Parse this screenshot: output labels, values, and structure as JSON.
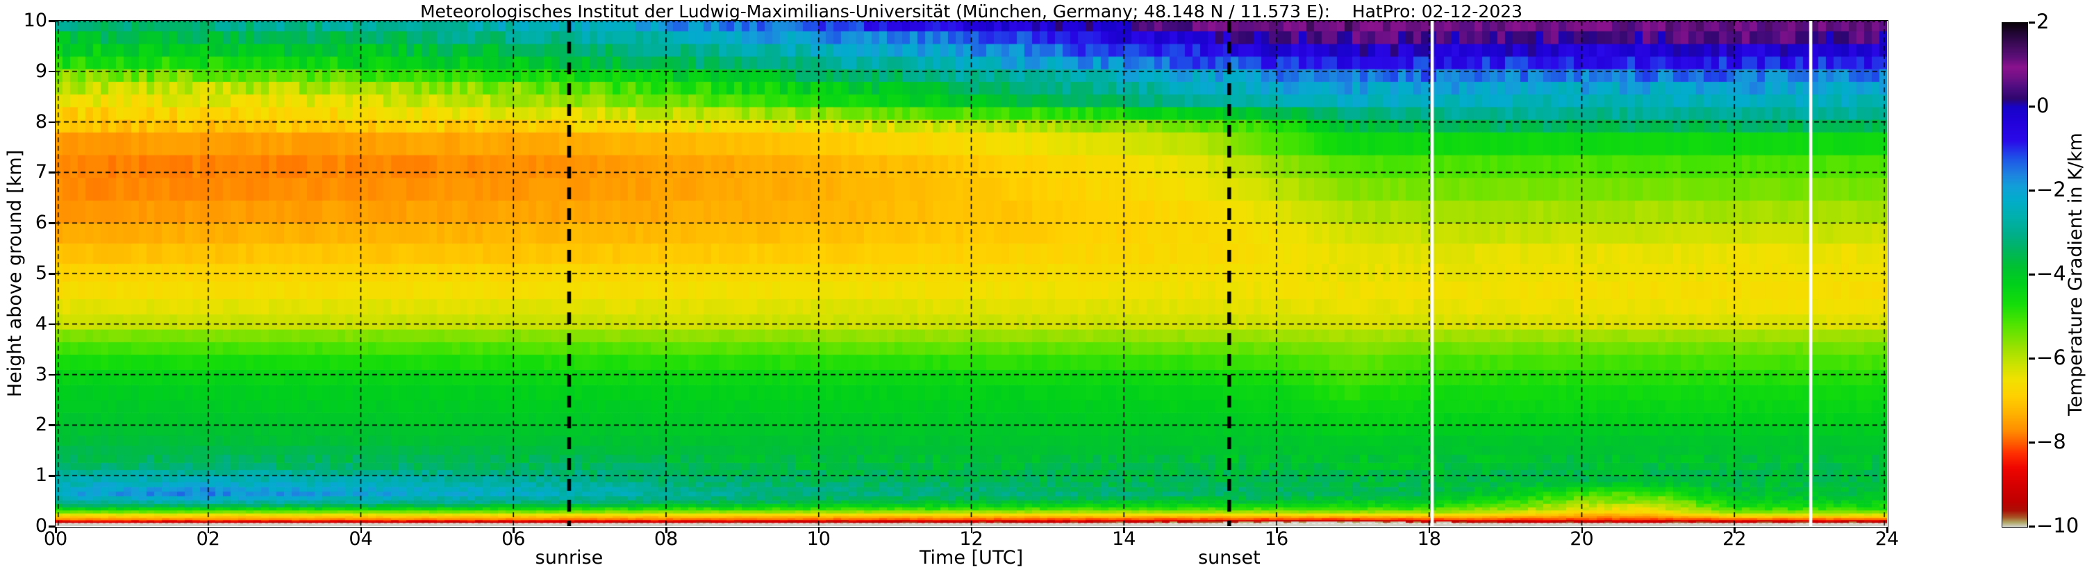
{
  "title": "Meteorologisches Institut der Ludwig-Maximilians-Universität (München, Germany; 48.148 N / 11.573 E):    HatPro: 02-12-2023",
  "x_axis_title": "Time [UTC]",
  "y_axis_title": "Height above ground [km]",
  "colorbar_title": "Temperature Gradient in K/km",
  "chart_data": {
    "type": "heatmap",
    "title": "Meteorologisches Institut der Ludwig-Maximilians-Universität (München, Germany; 48.148 N / 11.573 E):    HatPro: 02-12-2023",
    "xlabel": "Time [UTC]",
    "ylabel": "Height above ground [km]",
    "colorbar_label": "Temperature Gradient in K/km",
    "xlim": [
      0,
      24
    ],
    "ylim": [
      0,
      10
    ],
    "clim": [
      -10,
      2
    ],
    "grid": "dashed black, x every 2 h, y every 1 km",
    "xtick_labels": [
      "00",
      "02",
      "04",
      "06",
      "08",
      "10",
      "12",
      "14",
      "16",
      "18",
      "20",
      "22",
      "24"
    ],
    "xtick_hours": [
      0,
      2,
      4,
      6,
      8,
      10,
      12,
      14,
      16,
      18,
      20,
      22,
      24
    ],
    "ytick_labels": [
      "0",
      "1",
      "2",
      "3",
      "4",
      "5",
      "6",
      "7",
      "8",
      "9",
      "10"
    ],
    "ytick_km": [
      0,
      1,
      2,
      3,
      4,
      5,
      6,
      7,
      8,
      9,
      10
    ],
    "colorbar_tick_labels": [
      "2",
      "0",
      "−2",
      "−4",
      "−6",
      "−8",
      "−10"
    ],
    "colorbar_tick_values": [
      2,
      0,
      -2,
      -4,
      -6,
      -8,
      -10
    ],
    "annotations": [
      {
        "label": "sunrise",
        "hour_utc": 6.73,
        "style": "thick dashed black vertical line"
      },
      {
        "label": "sunset",
        "hour_utc": 15.38,
        "style": "thick dashed black vertical line"
      }
    ],
    "data_gap_hours_utc": [
      18.04,
      23.0
    ],
    "x_hours": [
      0,
      1,
      2,
      3,
      4,
      5,
      6,
      7,
      8,
      9,
      10,
      11,
      12,
      13,
      14,
      15,
      16,
      17,
      18,
      19,
      20,
      21,
      22,
      23,
      24
    ],
    "heights_km": [
      0.05,
      0.1,
      0.15,
      0.22,
      0.3,
      0.45,
      0.65,
      0.9,
      1.2,
      1.7,
      2.3,
      2.9,
      3.4,
      3.7,
      4.0,
      4.6,
      5.3,
      6.0,
      6.8,
      7.5,
      8.0,
      8.4,
      8.8,
      9.1,
      9.4,
      9.7,
      10.0
    ],
    "values_K_per_km": [
      [
        -10.3,
        -10.3,
        -10.3,
        -10.3,
        -10.3,
        -10.3,
        -10.3,
        -10.3,
        -10.3,
        -10.3,
        -10.3,
        -10.3,
        -10.3,
        -10.35,
        -10.35,
        -10.4,
        -10.45,
        -10.45,
        -10.35,
        -10.3,
        -10.3,
        -10.3,
        -10.3,
        -10.3,
        -10.3
      ],
      [
        -8.8,
        -8.8,
        -8.82,
        -8.84,
        -8.85,
        -8.9,
        -8.92,
        -8.95,
        -9.0,
        -9.05,
        -9.1,
        -9.12,
        -9.15,
        -9.2,
        -9.25,
        -9.35,
        -9.7,
        -9.9,
        -9.5,
        -9.3,
        -9.3,
        -9.25,
        -9.2,
        -9.25,
        -9.3
      ],
      [
        -7.6,
        -7.62,
        -7.65,
        -7.65,
        -7.68,
        -7.7,
        -7.7,
        -7.75,
        -7.8,
        -7.85,
        -7.9,
        -7.92,
        -7.95,
        -8.0,
        -8.0,
        -8.05,
        -8.1,
        -8.15,
        -8.0,
        -8.05,
        -8.1,
        -8.05,
        -7.9,
        -7.9,
        -7.9
      ],
      [
        -6.6,
        -6.62,
        -6.65,
        -6.65,
        -6.68,
        -6.7,
        -6.7,
        -6.75,
        -6.8,
        -6.82,
        -6.85,
        -6.88,
        -6.9,
        -6.9,
        -6.9,
        -6.9,
        -6.9,
        -6.85,
        -6.8,
        -7.0,
        -7.4,
        -7.4,
        -6.5,
        -6.5,
        -6.5
      ],
      [
        -5.2,
        -5.2,
        -5.22,
        -5.25,
        -5.25,
        -5.28,
        -5.3,
        -5.4,
        -5.45,
        -5.5,
        -5.55,
        -5.58,
        -5.6,
        -5.6,
        -5.6,
        -5.6,
        -5.55,
        -5.5,
        -5.5,
        -6.0,
        -6.6,
        -6.6,
        -5.3,
        -5.3,
        -5.3
      ],
      [
        -3.0,
        -2.9,
        -2.8,
        -2.9,
        -3.0,
        -3.1,
        -3.2,
        -3.35,
        -3.5,
        -3.6,
        -3.75,
        -3.85,
        -3.9,
        -3.95,
        -4.0,
        -4.05,
        -4.1,
        -4.3,
        -4.3,
        -5.0,
        -5.8,
        -5.9,
        -4.4,
        -4.3,
        -4.3
      ],
      [
        -2.2,
        -1.7,
        -1.6,
        -1.9,
        -2.0,
        -2.2,
        -2.3,
        -2.5,
        -2.85,
        -3.0,
        -3.1,
        -3.15,
        -3.2,
        -3.22,
        -3.25,
        -3.3,
        -3.35,
        -3.5,
        -3.55,
        -4.2,
        -5.0,
        -5.1,
        -3.9,
        -3.8,
        -3.8
      ],
      [
        -2.6,
        -2.4,
        -2.35,
        -2.5,
        -2.6,
        -2.7,
        -2.8,
        -3.0,
        -3.2,
        -3.3,
        -3.4,
        -3.45,
        -3.5,
        -3.52,
        -3.55,
        -3.58,
        -3.6,
        -3.62,
        -3.65,
        -3.6,
        -3.6,
        -3.65,
        -3.7,
        -3.7,
        -3.7
      ],
      [
        -3.35,
        -3.3,
        -3.3,
        -3.32,
        -3.35,
        -3.4,
        -3.45,
        -3.5,
        -3.55,
        -3.6,
        -3.65,
        -3.68,
        -3.7,
        -3.72,
        -3.74,
        -3.76,
        -3.8,
        -3.85,
        -3.8,
        -3.78,
        -3.76,
        -3.78,
        -3.8,
        -3.8,
        -3.8
      ],
      [
        -3.75,
        -3.76,
        -3.78,
        -3.8,
        -3.8,
        -3.82,
        -3.84,
        -3.86,
        -3.88,
        -3.9,
        -3.9,
        -3.9,
        -3.9,
        -3.92,
        -3.94,
        -3.95,
        -3.95,
        -4.1,
        -4.0,
        -3.97,
        -3.95,
        -3.95,
        -3.95,
        -3.95,
        -3.95
      ],
      [
        -4.0,
        -4.0,
        -4.02,
        -4.04,
        -4.05,
        -4.06,
        -4.08,
        -4.08,
        -4.1,
        -4.1,
        -4.1,
        -4.1,
        -4.1,
        -4.12,
        -4.15,
        -4.18,
        -4.2,
        -4.5,
        -4.4,
        -4.38,
        -4.36,
        -4.35,
        -4.35,
        -4.35,
        -4.35
      ],
      [
        -4.25,
        -4.26,
        -4.28,
        -4.3,
        -4.3,
        -4.32,
        -4.34,
        -4.36,
        -4.38,
        -4.4,
        -4.4,
        -4.4,
        -4.4,
        -4.42,
        -4.45,
        -4.5,
        -4.6,
        -5.1,
        -4.75,
        -4.75,
        -4.75,
        -4.75,
        -4.75,
        -4.75,
        -4.75
      ],
      [
        -4.8,
        -4.82,
        -4.84,
        -4.85,
        -4.85,
        -4.88,
        -4.9,
        -4.95,
        -5.0,
        -5.0,
        -5.0,
        -5.02,
        -5.05,
        -5.05,
        -5.08,
        -5.1,
        -5.15,
        -5.4,
        -5.2,
        -5.2,
        -5.2,
        -5.2,
        -5.2,
        -5.2,
        -5.2
      ],
      [
        -5.3,
        -5.32,
        -5.34,
        -5.35,
        -5.35,
        -5.38,
        -5.4,
        -5.45,
        -5.5,
        -5.5,
        -5.5,
        -5.52,
        -5.55,
        -5.55,
        -5.58,
        -5.6,
        -5.6,
        -5.7,
        -5.6,
        -5.6,
        -5.6,
        -5.6,
        -5.6,
        -5.6,
        -5.6
      ],
      [
        -6.1,
        -6.1,
        -6.1,
        -6.1,
        -6.1,
        -6.1,
        -6.1,
        -6.12,
        -6.15,
        -6.15,
        -6.15,
        -6.15,
        -6.15,
        -6.15,
        -6.18,
        -6.2,
        -6.2,
        -6.25,
        -6.25,
        -6.28,
        -6.3,
        -6.3,
        -6.3,
        -6.3,
        -6.3
      ],
      [
        -6.6,
        -6.6,
        -6.58,
        -6.58,
        -6.55,
        -6.55,
        -6.55,
        -6.55,
        -6.52,
        -6.52,
        -6.5,
        -6.5,
        -6.5,
        -6.5,
        -6.5,
        -6.5,
        -6.5,
        -6.55,
        -6.55,
        -6.58,
        -6.6,
        -6.6,
        -6.62,
        -6.65,
        -6.65
      ],
      [
        -7.0,
        -7.0,
        -6.98,
        -6.97,
        -6.95,
        -6.95,
        -6.95,
        -6.92,
        -6.9,
        -6.88,
        -6.85,
        -6.82,
        -6.8,
        -6.75,
        -6.7,
        -6.65,
        -6.55,
        -6.4,
        -6.4,
        -6.42,
        -6.45,
        -6.45,
        -6.48,
        -6.5,
        -6.5
      ],
      [
        -7.5,
        -7.5,
        -7.48,
        -7.46,
        -7.45,
        -7.42,
        -7.4,
        -7.38,
        -7.35,
        -7.3,
        -7.25,
        -7.18,
        -7.1,
        -7.0,
        -6.9,
        -6.8,
        -6.5,
        -6.1,
        -6.0,
        -6.0,
        -6.0,
        -6.0,
        -6.0,
        -6.0,
        -6.0
      ],
      [
        -7.8,
        -7.8,
        -7.78,
        -7.76,
        -7.75,
        -7.72,
        -7.7,
        -7.65,
        -7.55,
        -7.48,
        -7.4,
        -7.25,
        -7.1,
        -6.9,
        -6.7,
        -6.5,
        -6.0,
        -5.5,
        -5.4,
        -5.4,
        -5.4,
        -5.4,
        -5.4,
        -5.4,
        -5.4
      ],
      [
        -7.7,
        -7.7,
        -7.68,
        -7.66,
        -7.65,
        -7.62,
        -7.6,
        -7.5,
        -7.4,
        -7.3,
        -7.15,
        -7.0,
        -6.8,
        -6.6,
        -6.4,
        -6.1,
        -5.3,
        -4.7,
        -4.8,
        -4.8,
        -4.8,
        -4.8,
        -4.8,
        -4.8,
        -4.8
      ],
      [
        -7.1,
        -7.08,
        -7.0,
        -6.95,
        -6.9,
        -6.82,
        -6.75,
        -6.65,
        -6.55,
        -6.45,
        -6.3,
        -6.15,
        -6.0,
        -5.8,
        -5.6,
        -5.3,
        -4.6,
        -3.6,
        -3.3,
        -3.2,
        -3.2,
        -3.2,
        -3.2,
        -3.2,
        -3.2
      ],
      [
        -6.5,
        -6.48,
        -6.45,
        -6.38,
        -6.3,
        -6.15,
        -6.0,
        -5.75,
        -5.5,
        -5.15,
        -4.8,
        -4.4,
        -4.05,
        -3.65,
        -3.3,
        -2.95,
        -2.55,
        -2.35,
        -2.45,
        -2.48,
        -2.5,
        -2.48,
        -2.45,
        -2.45,
        -2.45
      ],
      [
        -5.9,
        -5.85,
        -5.8,
        -5.7,
        -5.6,
        -5.42,
        -5.25,
        -4.92,
        -4.6,
        -4.25,
        -3.9,
        -3.55,
        -3.2,
        -2.9,
        -2.6,
        -2.3,
        -1.95,
        -1.7,
        -1.8,
        -1.82,
        -1.85,
        -1.82,
        -1.8,
        -1.8,
        -1.8
      ],
      [
        -4.85,
        -4.8,
        -4.75,
        -4.65,
        -4.55,
        -4.38,
        -4.2,
        -3.92,
        -3.65,
        -3.35,
        -3.05,
        -2.75,
        -2.45,
        -2.15,
        -1.85,
        -1.55,
        -1.15,
        -0.9,
        -1.0,
        -1.02,
        -1.05,
        -1.02,
        -1.0,
        -1.0,
        -1.0
      ],
      [
        -4.25,
        -4.2,
        -4.15,
        -4.05,
        -3.95,
        -3.78,
        -3.6,
        -3.32,
        -3.05,
        -2.75,
        -2.45,
        -2.12,
        -1.8,
        -1.48,
        -1.15,
        -0.8,
        -0.4,
        -0.15,
        -0.3,
        -0.35,
        -0.4,
        -0.38,
        -0.35,
        -0.35,
        -0.35
      ],
      [
        -3.65,
        -3.6,
        -3.55,
        -3.45,
        -3.35,
        -3.18,
        -3.0,
        -2.7,
        -2.4,
        -2.08,
        -1.75,
        -1.45,
        -1.15,
        -0.85,
        -0.5,
        -0.2,
        0.25,
        0.6,
        0.5,
        0.42,
        0.4,
        0.45,
        0.5,
        0.45,
        0.45
      ],
      [
        -2.95,
        -2.9,
        -2.85,
        -2.72,
        -2.6,
        -2.45,
        -2.25,
        -1.9,
        -1.55,
        -1.25,
        -0.9,
        -0.6,
        -0.3,
        0.1,
        0.55,
        0.9,
        1.3,
        1.55,
        1.2,
        1.1,
        1.05,
        1.1,
        1.15,
        1.1,
        1.1
      ]
    ],
    "colormap_stops": [
      [
        -10.5,
        "#d8d8ce"
      ],
      [
        -10.0,
        "#cfcfc3"
      ],
      [
        -9.9,
        "#b0a562"
      ],
      [
        -9.78,
        "#a85426"
      ],
      [
        -9.62,
        "#ab0f06"
      ],
      [
        -9.4,
        "#c00000"
      ],
      [
        -9.0,
        "#d60000"
      ],
      [
        -8.6,
        "#f00600"
      ],
      [
        -8.25,
        "#ff3000"
      ],
      [
        -8.0,
        "#ff5f00"
      ],
      [
        -7.7,
        "#ff8f00"
      ],
      [
        -7.3,
        "#ffb300"
      ],
      [
        -6.9,
        "#ffd000"
      ],
      [
        -6.5,
        "#f2e100"
      ],
      [
        -6.1,
        "#c8e200"
      ],
      [
        -5.7,
        "#96e100"
      ],
      [
        -5.2,
        "#52e400"
      ],
      [
        -4.7,
        "#15dd0a"
      ],
      [
        -4.2,
        "#00d01c"
      ],
      [
        -3.8,
        "#00c133"
      ],
      [
        -3.4,
        "#00b560"
      ],
      [
        -3.0,
        "#00ae8e"
      ],
      [
        -2.6,
        "#00b0ae"
      ],
      [
        -2.2,
        "#02accc"
      ],
      [
        -1.9,
        "#12a0d8"
      ],
      [
        -1.6,
        "#1e82e0"
      ],
      [
        -1.2,
        "#1e50e8"
      ],
      [
        -0.8,
        "#2a0ae8"
      ],
      [
        -0.4,
        "#2302dc"
      ],
      [
        0.0,
        "#1703c8"
      ],
      [
        0.2,
        "#30066e"
      ],
      [
        0.45,
        "#4a0c7f"
      ],
      [
        0.7,
        "#6f1087"
      ],
      [
        0.95,
        "#8a128e"
      ],
      [
        1.2,
        "#5c0e78"
      ],
      [
        1.5,
        "#3c0a58"
      ],
      [
        1.75,
        "#230636"
      ],
      [
        2.0,
        "#0a020a"
      ]
    ],
    "colors": {
      "background": "#ffffff",
      "grid_line": "#000000",
      "data_gap_line": "#ffffff",
      "below_min_fill": "#d2d2c8"
    }
  }
}
